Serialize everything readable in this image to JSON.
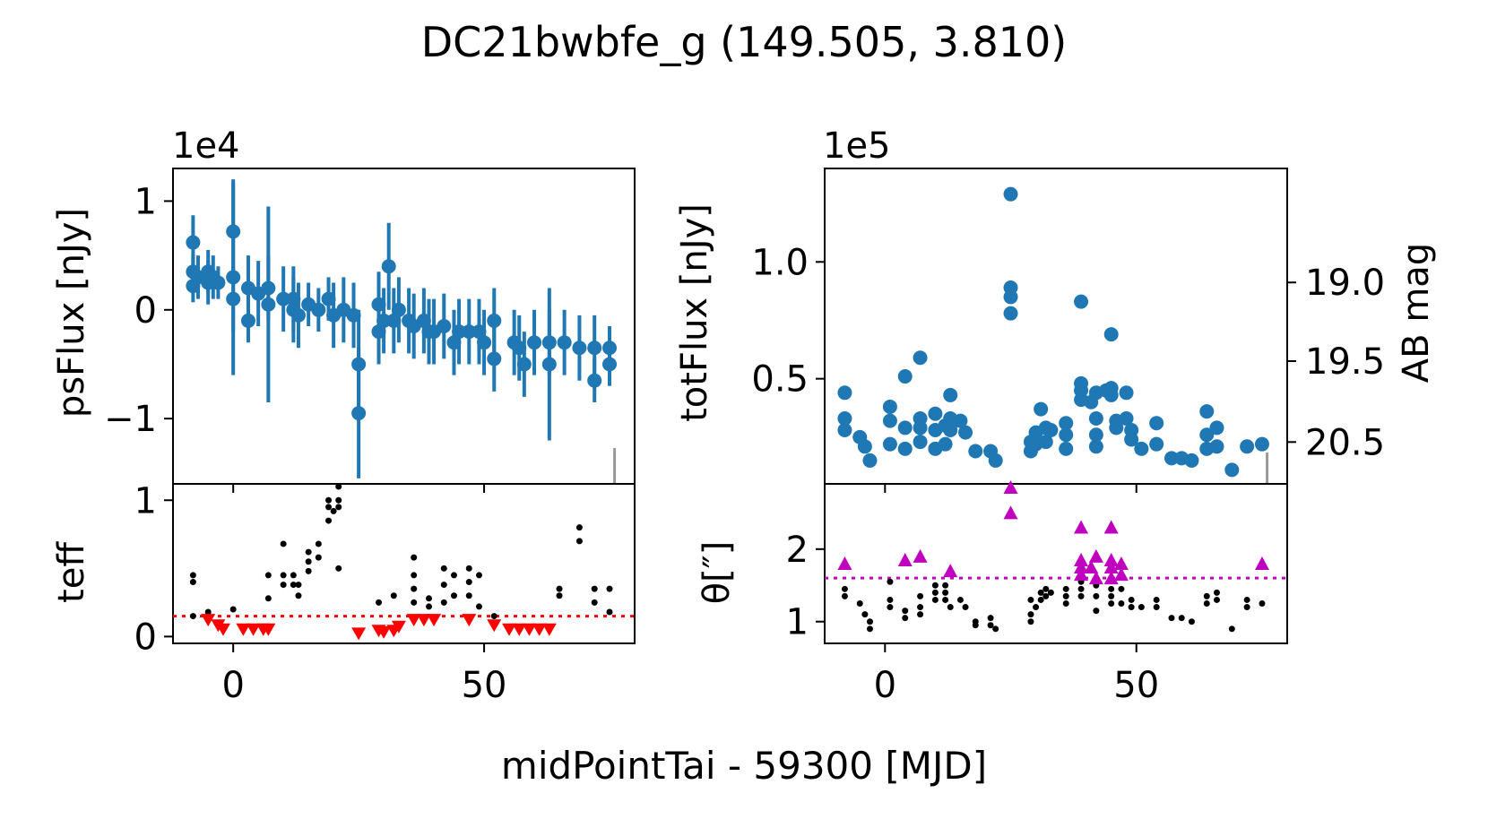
{
  "figure": {
    "title": "DC21bwbfe_g (149.505, 3.810)",
    "xlabel": "midPointTai - 59300 [MJD]"
  },
  "colors": {
    "flux": "#1f77b4",
    "teff": "#000000",
    "limit": "#ff0000",
    "theta": "#bf00bf",
    "marker": "#999999"
  },
  "chart_data": [
    {
      "id": "psflux",
      "type": "scatter",
      "ylabel": "psFlux [nJy]",
      "scale_label": "1e4",
      "xlim": [
        -12,
        80
      ],
      "ylim": [
        -1.6,
        1.3
      ],
      "xticks": [
        0,
        50
      ],
      "yticks": [
        1,
        0,
        -1
      ],
      "ytick_labels": [
        "1",
        "0",
        "−1"
      ],
      "marker_line_x": 76,
      "points": [
        [
          -8,
          0.62,
          0.25
        ],
        [
          -8,
          0.35,
          0.15
        ],
        [
          -8,
          0.22,
          0.15
        ],
        [
          -7,
          0.3,
          0.2
        ],
        [
          -5,
          0.35,
          0.2
        ],
        [
          -5,
          0.25,
          0.2
        ],
        [
          -4,
          0.3,
          0.2
        ],
        [
          -3,
          0.25,
          0.15
        ],
        [
          0,
          0.72,
          0.45
        ],
        [
          0,
          0.3,
          0.9
        ],
        [
          0,
          0.1,
          0.3
        ],
        [
          3,
          0.2,
          0.3
        ],
        [
          3,
          -0.1,
          0.2
        ],
        [
          5,
          0.15,
          0.3
        ],
        [
          7,
          0.2,
          0.3
        ],
        [
          7,
          0.05,
          0.9
        ],
        [
          10,
          0.1,
          0.3
        ],
        [
          12,
          0.1,
          0.3
        ],
        [
          12,
          0.0,
          0.3
        ],
        [
          13,
          -0.05,
          0.3
        ],
        [
          15,
          0.05,
          0.2
        ],
        [
          17,
          0.0,
          0.2
        ],
        [
          19,
          0.1,
          0.2
        ],
        [
          20,
          -0.05,
          0.3
        ],
        [
          22,
          0.0,
          0.3
        ],
        [
          24,
          -0.05,
          0.3
        ],
        [
          25,
          -0.5,
          0.5
        ],
        [
          25,
          -0.95,
          0.6
        ],
        [
          29,
          0.05,
          0.3
        ],
        [
          29,
          -0.2,
          0.3
        ],
        [
          30,
          -0.1,
          0.3
        ],
        [
          31,
          0.4,
          0.4
        ],
        [
          32,
          -0.1,
          0.3
        ],
        [
          33,
          0.0,
          0.3
        ],
        [
          35,
          -0.1,
          0.3
        ],
        [
          36,
          -0.15,
          0.3
        ],
        [
          38,
          -0.1,
          0.3
        ],
        [
          39,
          -0.2,
          0.3
        ],
        [
          40,
          -0.2,
          0.3
        ],
        [
          42,
          -0.15,
          0.3
        ],
        [
          44,
          -0.3,
          0.3
        ],
        [
          45,
          -0.2,
          0.3
        ],
        [
          47,
          -0.2,
          0.3
        ],
        [
          49,
          -0.2,
          0.3
        ],
        [
          50,
          -0.3,
          0.3
        ],
        [
          52,
          -0.1,
          0.3
        ],
        [
          52,
          -0.45,
          0.3
        ],
        [
          56,
          -0.3,
          0.3
        ],
        [
          57,
          -0.35,
          0.3
        ],
        [
          58,
          -0.5,
          0.3
        ],
        [
          60,
          -0.3,
          0.3
        ],
        [
          63,
          -0.3,
          0.3
        ],
        [
          63,
          -0.5,
          0.7
        ],
        [
          66,
          -0.3,
          0.3
        ],
        [
          69,
          -0.35,
          0.3
        ],
        [
          72,
          -0.35,
          0.3
        ],
        [
          72,
          -0.65,
          0.2
        ],
        [
          75,
          -0.35,
          0.2
        ],
        [
          75,
          -0.5,
          0.2
        ]
      ]
    },
    {
      "id": "teff",
      "type": "scatter",
      "ylabel": "teff",
      "xlim": [
        -12,
        80
      ],
      "ylim": [
        -0.05,
        1.12
      ],
      "xticks": [
        0,
        50
      ],
      "yticks": [
        1,
        0
      ],
      "xtick_labels": [
        "0",
        "50"
      ],
      "ytick_labels": [
        "1",
        "0"
      ],
      "limit_line_y": 0.15,
      "points": [
        [
          -8,
          0.45
        ],
        [
          -8,
          0.4
        ],
        [
          -8,
          0.15
        ],
        [
          -5,
          0.18
        ],
        [
          0,
          0.2
        ],
        [
          7,
          0.45
        ],
        [
          7,
          0.28
        ],
        [
          10,
          0.68
        ],
        [
          10,
          0.45
        ],
        [
          10,
          0.38
        ],
        [
          12,
          0.45
        ],
        [
          12,
          0.38
        ],
        [
          13,
          0.38
        ],
        [
          13,
          0.3
        ],
        [
          15,
          0.62
        ],
        [
          15,
          0.55
        ],
        [
          15,
          0.48
        ],
        [
          17,
          0.68
        ],
        [
          17,
          0.58
        ],
        [
          19,
          1.0
        ],
        [
          19,
          0.95
        ],
        [
          19,
          0.85
        ],
        [
          20,
          0.92
        ],
        [
          21,
          1.1
        ],
        [
          21,
          1.0
        ],
        [
          21,
          0.95
        ],
        [
          21,
          0.5
        ],
        [
          29,
          0.25
        ],
        [
          32,
          0.3
        ],
        [
          36,
          0.58
        ],
        [
          36,
          0.45
        ],
        [
          36,
          0.35
        ],
        [
          36,
          0.25
        ],
        [
          39,
          0.28
        ],
        [
          39,
          0.22
        ],
        [
          42,
          0.5
        ],
        [
          42,
          0.38
        ],
        [
          42,
          0.25
        ],
        [
          44,
          0.45
        ],
        [
          44,
          0.3
        ],
        [
          47,
          0.5
        ],
        [
          47,
          0.4
        ],
        [
          47,
          0.3
        ],
        [
          49,
          0.45
        ],
        [
          49,
          0.22
        ],
        [
          52,
          0.15
        ],
        [
          65,
          0.35
        ],
        [
          65,
          0.3
        ],
        [
          69,
          0.8
        ],
        [
          69,
          0.7
        ],
        [
          72,
          0.35
        ],
        [
          72,
          0.25
        ],
        [
          75,
          0.35
        ],
        [
          75,
          0.18
        ]
      ],
      "limits": [
        [
          -5,
          0.12
        ],
        [
          -3,
          0.08
        ],
        [
          -2,
          0.05
        ],
        [
          2,
          0.05
        ],
        [
          4,
          0.05
        ],
        [
          6,
          0.05
        ],
        [
          7,
          0.05
        ],
        [
          25,
          0.02
        ],
        [
          29,
          0.04
        ],
        [
          30,
          0.03
        ],
        [
          32,
          0.04
        ],
        [
          33,
          0.07
        ],
        [
          36,
          0.12
        ],
        [
          38,
          0.12
        ],
        [
          40,
          0.12
        ],
        [
          47,
          0.12
        ],
        [
          52,
          0.08
        ],
        [
          55,
          0.05
        ],
        [
          57,
          0.05
        ],
        [
          59,
          0.05
        ],
        [
          61,
          0.05
        ],
        [
          63,
          0.05
        ]
      ]
    },
    {
      "id": "totflux",
      "type": "scatter",
      "ylabel": "totFlux [nJy]",
      "ylabel_right": "AB mag",
      "scale_label": "1e5",
      "xlim": [
        -12,
        80
      ],
      "ylim": [
        0.05,
        1.4
      ],
      "xticks": [
        0,
        50
      ],
      "yticks": [
        1.0,
        0.5
      ],
      "ytick_labels": [
        "1.0",
        "0.5"
      ],
      "right_ticks": [
        19.0,
        19.5,
        20.5
      ],
      "right_tick_labels": [
        "19.0",
        "19.5",
        "20.5"
      ],
      "marker_line_x": 76,
      "points": [
        [
          -8,
          0.44
        ],
        [
          -8,
          0.33
        ],
        [
          -8,
          0.28
        ],
        [
          -5,
          0.25
        ],
        [
          -4,
          0.21
        ],
        [
          -3,
          0.15
        ],
        [
          1,
          0.38
        ],
        [
          1,
          0.32
        ],
        [
          1,
          0.22
        ],
        [
          4,
          0.51
        ],
        [
          4,
          0.29
        ],
        [
          4,
          0.2
        ],
        [
          7,
          0.59
        ],
        [
          7,
          0.33
        ],
        [
          7,
          0.29
        ],
        [
          7,
          0.23
        ],
        [
          10,
          0.35
        ],
        [
          10,
          0.28
        ],
        [
          10,
          0.2
        ],
        [
          12,
          0.3
        ],
        [
          12,
          0.22
        ],
        [
          13,
          0.43
        ],
        [
          13,
          0.33
        ],
        [
          13,
          0.28
        ],
        [
          15,
          0.32
        ],
        [
          16,
          0.27
        ],
        [
          18,
          0.19
        ],
        [
          21,
          0.19
        ],
        [
          22,
          0.15
        ],
        [
          25,
          1.29
        ],
        [
          25,
          0.89
        ],
        [
          25,
          0.85
        ],
        [
          25,
          0.78
        ],
        [
          29,
          0.23
        ],
        [
          29,
          0.19
        ],
        [
          30,
          0.27
        ],
        [
          30,
          0.22
        ],
        [
          31,
          0.37
        ],
        [
          32,
          0.29
        ],
        [
          32,
          0.23
        ],
        [
          33,
          0.28
        ],
        [
          36,
          0.31
        ],
        [
          36,
          0.26
        ],
        [
          36,
          0.2
        ],
        [
          39,
          0.83
        ],
        [
          39,
          0.48
        ],
        [
          39,
          0.45
        ],
        [
          39,
          0.41
        ],
        [
          41,
          0.4
        ],
        [
          42,
          0.44
        ],
        [
          42,
          0.33
        ],
        [
          42,
          0.26
        ],
        [
          42,
          0.21
        ],
        [
          44,
          0.45
        ],
        [
          45,
          0.69
        ],
        [
          45,
          0.46
        ],
        [
          45,
          0.43
        ],
        [
          46,
          0.32
        ],
        [
          46,
          0.29
        ],
        [
          48,
          0.44
        ],
        [
          48,
          0.33
        ],
        [
          49,
          0.28
        ],
        [
          49,
          0.24
        ],
        [
          51,
          0.2
        ],
        [
          54,
          0.31
        ],
        [
          54,
          0.22
        ],
        [
          57,
          0.16
        ],
        [
          59,
          0.16
        ],
        [
          61,
          0.15
        ],
        [
          64,
          0.36
        ],
        [
          64,
          0.26
        ],
        [
          64,
          0.2
        ],
        [
          66,
          0.29
        ],
        [
          66,
          0.21
        ],
        [
          69,
          0.11
        ],
        [
          72,
          0.21
        ],
        [
          75,
          0.22
        ]
      ]
    },
    {
      "id": "theta",
      "type": "scatter",
      "ylabel": "θ[″]",
      "xlim": [
        -12,
        80
      ],
      "ylim": [
        0.7,
        2.9
      ],
      "xticks": [
        0,
        50
      ],
      "yticks": [
        2,
        1
      ],
      "xtick_labels": [
        "0",
        "50"
      ],
      "ytick_labels": [
        "2",
        "1"
      ],
      "limit_line_y": 1.6,
      "points": [
        [
          -8,
          1.45
        ],
        [
          -8,
          1.35
        ],
        [
          -5,
          1.25
        ],
        [
          -4,
          1.1
        ],
        [
          -3,
          1.0
        ],
        [
          -3,
          0.9
        ],
        [
          1,
          1.55
        ],
        [
          1,
          1.3
        ],
        [
          1,
          1.2
        ],
        [
          4,
          1.15
        ],
        [
          4,
          1.05
        ],
        [
          7,
          1.35
        ],
        [
          7,
          1.2
        ],
        [
          7,
          1.1
        ],
        [
          10,
          1.5
        ],
        [
          10,
          1.4
        ],
        [
          10,
          1.3
        ],
        [
          12,
          1.5
        ],
        [
          12,
          1.4
        ],
        [
          12,
          1.3
        ],
        [
          13,
          1.2
        ],
        [
          15,
          1.3
        ],
        [
          16,
          1.2
        ],
        [
          18,
          1.0
        ],
        [
          18,
          0.95
        ],
        [
          21,
          1.05
        ],
        [
          21,
          0.95
        ],
        [
          22,
          0.9
        ],
        [
          29,
          1.3
        ],
        [
          29,
          1.1
        ],
        [
          29,
          1.0
        ],
        [
          30,
          1.2
        ],
        [
          31,
          1.4
        ],
        [
          31,
          1.3
        ],
        [
          32,
          1.45
        ],
        [
          32,
          1.35
        ],
        [
          33,
          1.4
        ],
        [
          36,
          1.45
        ],
        [
          36,
          1.35
        ],
        [
          36,
          1.25
        ],
        [
          39,
          1.55
        ],
        [
          39,
          1.45
        ],
        [
          39,
          1.35
        ],
        [
          42,
          1.5
        ],
        [
          42,
          1.35
        ],
        [
          42,
          1.15
        ],
        [
          45,
          1.45
        ],
        [
          45,
          1.35
        ],
        [
          45,
          1.25
        ],
        [
          47,
          1.45
        ],
        [
          47,
          1.25
        ],
        [
          49,
          1.3
        ],
        [
          49,
          1.2
        ],
        [
          51,
          1.2
        ],
        [
          54,
          1.3
        ],
        [
          54,
          1.2
        ],
        [
          57,
          1.05
        ],
        [
          59,
          1.05
        ],
        [
          61,
          1.0
        ],
        [
          64,
          1.35
        ],
        [
          64,
          1.25
        ],
        [
          66,
          1.4
        ],
        [
          66,
          1.3
        ],
        [
          69,
          0.9
        ],
        [
          72,
          1.3
        ],
        [
          72,
          1.2
        ],
        [
          75,
          1.25
        ]
      ],
      "triangles": [
        [
          -8,
          1.8
        ],
        [
          4,
          1.85
        ],
        [
          7,
          1.9
        ],
        [
          13,
          1.7
        ],
        [
          25,
          2.85
        ],
        [
          25,
          2.5
        ],
        [
          39,
          2.3
        ],
        [
          39,
          1.85
        ],
        [
          39,
          1.75
        ],
        [
          39,
          1.65
        ],
        [
          41,
          1.75
        ],
        [
          42,
          1.9
        ],
        [
          42,
          1.6
        ],
        [
          45,
          2.3
        ],
        [
          45,
          1.85
        ],
        [
          45,
          1.75
        ],
        [
          45,
          1.6
        ],
        [
          47,
          1.8
        ],
        [
          47,
          1.65
        ],
        [
          75,
          1.8
        ]
      ]
    }
  ]
}
